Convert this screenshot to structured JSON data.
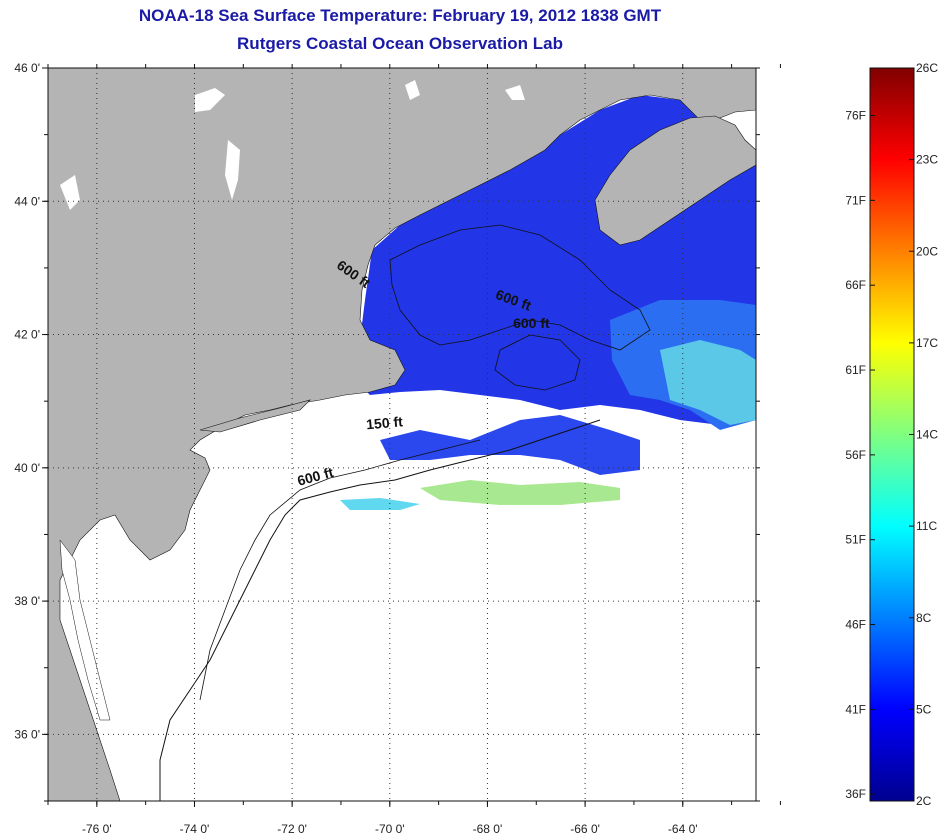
{
  "title": {
    "line1": "NOAA-18 Sea Surface Temperature:  February 19, 2012 1838 GMT",
    "line2": "Rutgers Coastal Ocean Observation Lab"
  },
  "axes": {
    "lat_ticks": [
      {
        "value": 46,
        "label": "46 0'"
      },
      {
        "value": 44,
        "label": "44 0'"
      },
      {
        "value": 42,
        "label": "42 0'"
      },
      {
        "value": 40,
        "label": "40 0'"
      },
      {
        "value": 38,
        "label": "38 0'"
      },
      {
        "value": 36,
        "label": "36 0'"
      }
    ],
    "lon_ticks": [
      {
        "value": -76,
        "label": "-76 0'"
      },
      {
        "value": -74,
        "label": "-74 0'"
      },
      {
        "value": -72,
        "label": "-72 0'"
      },
      {
        "value": -70,
        "label": "-70 0'"
      },
      {
        "value": -68,
        "label": "-68 0'"
      },
      {
        "value": -66,
        "label": "-66 0'"
      },
      {
        "value": -64,
        "label": "-64 0'"
      }
    ],
    "lat_range": [
      35,
      46
    ],
    "lon_range": [
      -77,
      -62.5
    ]
  },
  "contour_labels": [
    {
      "text": "600 ft",
      "lon": -70.8,
      "lat": 42.85,
      "rotate": 35
    },
    {
      "text": "600 ft",
      "lon": -67.5,
      "lat": 42.45,
      "rotate": 20
    },
    {
      "text": "600 ft",
      "lon": -67.1,
      "lat": 42.1,
      "rotate": 0
    },
    {
      "text": "150 ft",
      "lon": -70.1,
      "lat": 40.6,
      "rotate": -5
    },
    {
      "text": "600 ft",
      "lon": -71.5,
      "lat": 39.8,
      "rotate": -15
    }
  ],
  "colorbar": {
    "fahrenheit_labels": [
      "76F",
      "71F",
      "66F",
      "61F",
      "56F",
      "51F",
      "46F",
      "41F",
      "36F"
    ],
    "celsius_labels": [
      "26C",
      "23C",
      "20C",
      "17C",
      "14C",
      "11C",
      "8C",
      "5C",
      "2C"
    ],
    "c_min": 2,
    "c_max": 26,
    "stops": [
      "#00008f",
      "#0000ff",
      "#0080ff",
      "#00ffff",
      "#80ff80",
      "#ffff00",
      "#ff8000",
      "#ff0000",
      "#800000"
    ]
  },
  "colors": {
    "land": "#b4b4b4",
    "water_no_data": "#ffffff",
    "sst_deep_blue": "#1e24e0",
    "sst_blue": "#2a4ef0",
    "sst_cyan": "#60e0f0",
    "sst_yellow": "#e8f060",
    "title": "#1a1aa6"
  }
}
